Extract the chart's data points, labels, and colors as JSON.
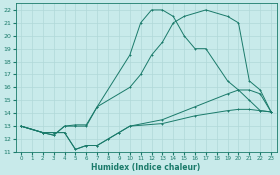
{
  "xlabel": "Humidex (Indice chaleur)",
  "bg_color": "#c8eaea",
  "grid_color": "#b0d8d8",
  "line_color": "#1a7a6a",
  "xlim": [
    -0.5,
    23.5
  ],
  "ylim": [
    11,
    22.5
  ],
  "xticks": [
    0,
    1,
    2,
    3,
    4,
    5,
    6,
    7,
    8,
    9,
    10,
    11,
    12,
    13,
    14,
    15,
    16,
    17,
    18,
    19,
    20,
    21,
    22,
    23
  ],
  "yticks": [
    11,
    12,
    13,
    14,
    15,
    16,
    17,
    18,
    19,
    20,
    21,
    22
  ],
  "line_upper_x": [
    0,
    2,
    3,
    4,
    5,
    6,
    7,
    10,
    11,
    12,
    13,
    14,
    15,
    16,
    17,
    19,
    20,
    21,
    22,
    23
  ],
  "line_upper_y": [
    13,
    12.5,
    12.3,
    13,
    13,
    13,
    14.5,
    18.5,
    21,
    22,
    22,
    21.5,
    20,
    19,
    19,
    16.5,
    15.8,
    15,
    14.2,
    14.1
  ],
  "line_mid_x": [
    0,
    2,
    3,
    4,
    5,
    6,
    7,
    10,
    11,
    12,
    13,
    14,
    15,
    17,
    19,
    20,
    21,
    22,
    23
  ],
  "line_mid_y": [
    13,
    12.5,
    12.3,
    13,
    13.1,
    13.1,
    14.5,
    16,
    17,
    18.5,
    19.5,
    21,
    21.5,
    22,
    21.5,
    21,
    16.5,
    15.8,
    14.1
  ],
  "line_low1_x": [
    0,
    2,
    3,
    4,
    5,
    6,
    7,
    8,
    9,
    10,
    13,
    16,
    19,
    20,
    21,
    22,
    23
  ],
  "line_low1_y": [
    13,
    12.5,
    12.5,
    12.5,
    11.2,
    11.5,
    11.5,
    12,
    12.5,
    13,
    13.5,
    14.5,
    15.5,
    15.8,
    15.8,
    15.5,
    14.1
  ],
  "line_low2_x": [
    0,
    2,
    3,
    4,
    5,
    6,
    7,
    8,
    9,
    10,
    13,
    16,
    19,
    20,
    21,
    22,
    23
  ],
  "line_low2_y": [
    13,
    12.5,
    12.5,
    12.5,
    11.2,
    11.5,
    11.5,
    12,
    12.5,
    13,
    13.2,
    13.8,
    14.2,
    14.3,
    14.3,
    14.2,
    14.1
  ]
}
